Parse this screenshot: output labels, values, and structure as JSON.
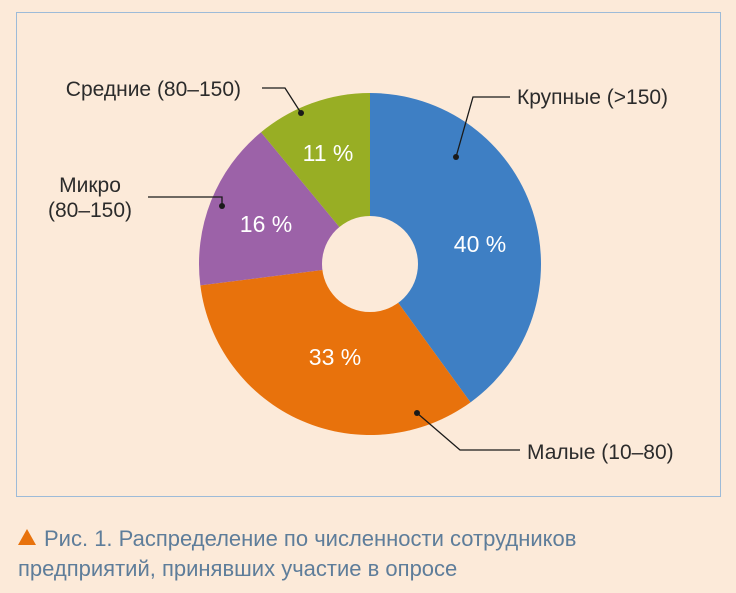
{
  "chart_data": {
    "type": "pie",
    "categories": [
      "Крупные (>150)",
      "Малые (10–80)",
      "Микро (80–150)",
      "Средние (80–150)"
    ],
    "values": [
      40,
      33,
      16,
      11
    ],
    "value_labels": [
      "40 %",
      "33 %",
      "16 %",
      "11 %"
    ],
    "colors": [
      "#3e7fc4",
      "#e8720c",
      "#9c62a8",
      "#98ae24"
    ],
    "title": "",
    "donut": true,
    "start": "12 o'clock",
    "direction": "clockwise",
    "legend": "callout labels around the chart"
  },
  "caption": {
    "text": "Рис. 1. Распределение по численности сотрудников предприятий, принявших участие в опросе"
  }
}
